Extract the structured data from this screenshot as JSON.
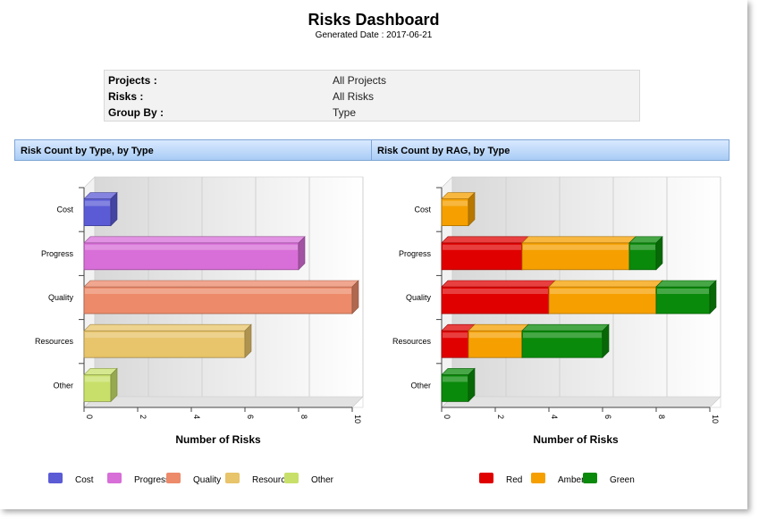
{
  "header": {
    "title": "Risks Dashboard",
    "generated_label": "Generated Date :",
    "generated_date": "2017-06-21"
  },
  "filters": [
    {
      "key": "Projects :",
      "value": "All Projects"
    },
    {
      "key": "Risks :",
      "value": "All Risks"
    },
    {
      "key": "Group By :",
      "value": "Type"
    }
  ],
  "chart_data": [
    {
      "type": "bar",
      "orientation": "horizontal",
      "title": "Risk Count by Type, by Type",
      "xlabel": "Number of Risks",
      "ylabel": "",
      "xlim": [
        0,
        10
      ],
      "xticks": [
        0,
        2,
        4,
        6,
        8,
        10
      ],
      "categories": [
        "Cost",
        "Progress",
        "Quality",
        "Resources",
        "Other"
      ],
      "values": [
        1,
        8,
        10,
        6,
        1
      ],
      "colors": [
        "#5b5bd6",
        "#d86ed8",
        "#ec8a6a",
        "#e8c46a",
        "#c8e06a"
      ],
      "legend": [
        "Cost",
        "Progress",
        "Quality",
        "Resources",
        "Other"
      ],
      "legend_position": "bottom",
      "grid": true
    },
    {
      "type": "bar",
      "orientation": "horizontal",
      "stacked": true,
      "title": "Risk Count by RAG, by Type",
      "xlabel": "Number of Risks",
      "ylabel": "",
      "xlim": [
        0,
        10
      ],
      "xticks": [
        0,
        2,
        4,
        6,
        8,
        10
      ],
      "categories": [
        "Cost",
        "Progress",
        "Quality",
        "Resources",
        "Other"
      ],
      "series": [
        {
          "name": "Red",
          "color": "#e00000",
          "values": [
            0,
            3,
            4,
            1,
            0
          ]
        },
        {
          "name": "Amber",
          "color": "#f5a000",
          "values": [
            1,
            4,
            4,
            2,
            0
          ]
        },
        {
          "name": "Green",
          "color": "#0a8a0a",
          "values": [
            0,
            1,
            2,
            3,
            1
          ]
        }
      ],
      "legend_position": "bottom",
      "grid": true
    }
  ]
}
